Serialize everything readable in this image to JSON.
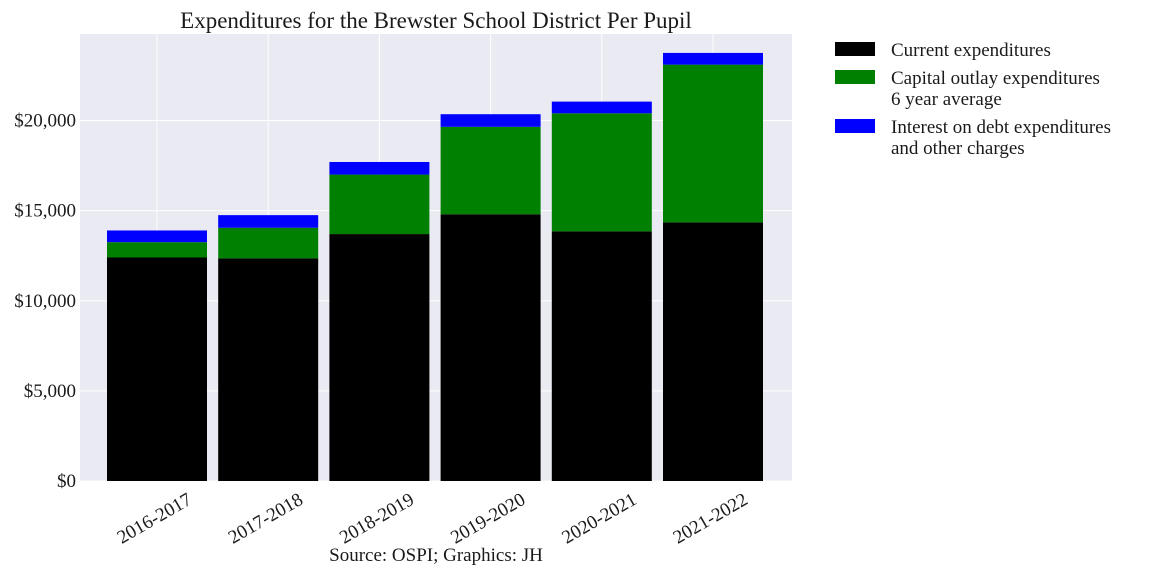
{
  "chart_data": {
    "type": "bar",
    "stacked": true,
    "title": "Expenditures for the Brewster School District Per Pupil",
    "source": "Source: OSPI; Graphics: JH",
    "xlabel": "",
    "ylabel": "",
    "categories": [
      "2016-2017",
      "2017-2018",
      "2018-2019",
      "2019-2020",
      "2020-2021",
      "2021-2022"
    ],
    "yticks": [
      0,
      5000,
      10000,
      15000,
      20000
    ],
    "ytick_labels": [
      "$0",
      "$5,000",
      "$10,000",
      "$15,000",
      "$20,000"
    ],
    "ylim": [
      0,
      24800
    ],
    "grid": true,
    "legend_position": "outside-right",
    "series": [
      {
        "name": "Current expenditures",
        "legend_lines": [
          "Current expenditures"
        ],
        "color": "#000000",
        "values": [
          12400,
          12350,
          13700,
          14800,
          13850,
          14350
        ]
      },
      {
        "name": "Capital outlay expenditures 6 year average",
        "legend_lines": [
          "Capital outlay expenditures",
          "6 year average"
        ],
        "color": "#008000",
        "values": [
          850,
          1700,
          3300,
          4850,
          6550,
          8750
        ]
      },
      {
        "name": "Interest on debt expenditures and other charges",
        "legend_lines": [
          "Interest on debt expenditures",
          "and other charges"
        ],
        "color": "#0000ff",
        "values": [
          650,
          700,
          700,
          700,
          650,
          650
        ]
      }
    ]
  }
}
